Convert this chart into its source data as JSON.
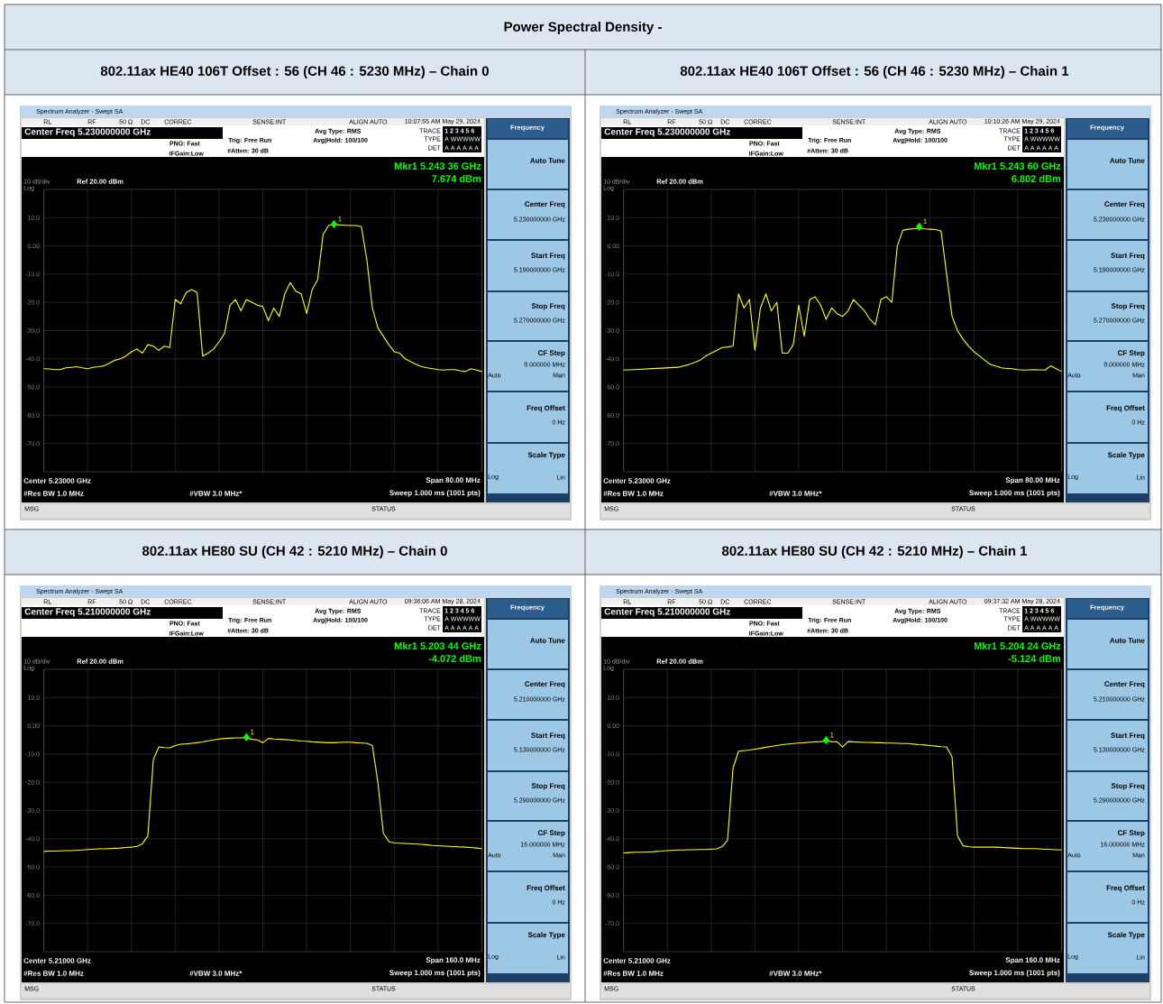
{
  "chart_data": [
    {
      "type": "other",
      "title": "Power Spectral Density -"
    },
    {
      "type": "line",
      "title": "802.11ax HE40 106T Offset : 56 (CH 46 : 5230 MHz) – Chain 0",
      "categories": [
        null,
        null,
        null,
        null,
        null,
        null,
        null,
        null,
        null,
        null,
        null,
        null,
        null,
        null,
        null,
        null,
        null,
        null,
        null,
        null,
        null,
        null,
        null,
        null,
        null,
        null,
        null,
        null,
        null,
        null,
        null,
        null,
        null,
        null,
        null,
        null,
        null,
        null,
        null,
        null,
        null,
        null,
        null,
        null,
        null,
        null,
        null,
        null,
        null,
        null,
        null,
        null,
        null,
        null,
        null,
        null,
        null,
        null,
        null,
        null,
        null,
        null,
        null,
        null,
        null,
        null,
        null,
        null,
        null,
        null,
        null,
        null,
        null,
        null,
        null,
        null,
        null,
        null,
        null,
        null,
        null
      ],
      "ylim": [
        -80,
        20
      ],
      "yticks": [
        {
          "value": -70,
          "label": "-70.0"
        },
        {
          "value": -60,
          "label": "-60.0"
        },
        {
          "value": -50,
          "label": "-50.0"
        },
        {
          "value": -40,
          "label": "-40.0"
        },
        {
          "value": -30,
          "label": "-30.0"
        },
        {
          "value": -20,
          "label": "-20.0"
        },
        {
          "value": -10,
          "label": "-10.0"
        },
        {
          "value": 0,
          "label": "0.00"
        },
        {
          "value": 10,
          "label": "10.0"
        }
      ],
      "tick_labels": "y",
      "grid": true,
      "series": [
        {
          "color": "#ffff00",
          "values": [
            -43.5,
            -43.6,
            -43.8,
            -43.8,
            -43.2,
            -43,
            -42.8,
            -43.2,
            -43.5,
            -43,
            -42.8,
            -42.5,
            -41.5,
            -40.5,
            -40,
            -39,
            -37.5,
            -36.5,
            -38,
            -35,
            -35.5,
            -37,
            -35.5,
            -36,
            -19,
            -20.5,
            -16.5,
            -15.5,
            -16.5,
            -39,
            -38,
            -36.5,
            -34,
            -31,
            -21,
            -19,
            -23,
            -19,
            -20,
            -21,
            -21.5,
            -26.5,
            -22,
            -25,
            -17,
            -13,
            -16,
            -17,
            -24,
            -15.5,
            -12,
            4,
            7.2,
            7.6,
            7.4,
            7.3,
            7.2,
            7.2,
            6.8,
            -5,
            -22,
            -29,
            -32,
            -35,
            -37.5,
            -38,
            -40,
            -41,
            -42,
            -42.8,
            -43.2,
            -43.5,
            -43.8,
            -44,
            -43.8,
            -43.8,
            -44.2,
            -44.5,
            -43.5,
            -44,
            -44.5
          ]
        },
        {
          "type": "scatter",
          "marker": "diamond",
          "color": "#00ff00",
          "values": [
            null,
            null,
            null,
            null,
            null,
            null,
            null,
            null,
            null,
            null,
            null,
            null,
            null,
            null,
            null,
            null,
            null,
            null,
            null,
            null,
            null,
            null,
            null,
            null,
            null,
            null,
            null,
            null,
            null,
            null,
            null,
            null,
            null,
            null,
            null,
            null,
            null,
            null,
            null,
            null,
            null,
            null,
            null,
            null,
            null,
            null,
            null,
            null,
            null,
            null,
            null,
            null,
            null,
            7.674,
            null,
            null,
            null,
            null,
            null,
            null,
            null,
            null,
            null,
            null,
            null,
            null,
            null,
            null,
            null,
            null,
            null,
            null,
            null,
            null,
            null,
            null,
            null,
            null,
            null,
            null,
            null
          ]
        }
      ],
      "annotations": [
        "Spectrum Analyzer - Swept SA",
        "RL",
        "RF",
        "50 Ω",
        "DC",
        "CORREC",
        "SENSE:INT",
        "ALIGN AUTO",
        "10:07:55 AM May 29, 2024",
        "Center Freq 5.230000000 GHz",
        "PNO: Fast",
        "IFGain:Low",
        "Trig: Free Run",
        "#Atten: 30 dB",
        "Avg Type: RMS",
        "Avg|Hold: 100/100",
        "TRACE",
        "1 2 3 4 5 6",
        "TYPE",
        "A WWWWW",
        "DET",
        "A A A A A A",
        "Mkr1 5.243 36 GHz",
        "7.674 dBm",
        "10 dB/div",
        "Ref 20.00 dBm",
        "Log",
        "Center 5.23000 GHz",
        "#Res BW 1.0 MHz",
        "#VBW 3.0 MHz*",
        "Span 80.00 MHz",
        "Sweep  1.000 ms (1001 pts)",
        "MSG",
        "STATUS",
        "Frequency",
        "Auto Tune",
        "Center Freq",
        "5.230000000 GHz",
        "Start Freq",
        "5.190000000 GHz",
        "Stop Freq",
        "5.270000000 GHz",
        "CF Step",
        "8.000000 MHz",
        "Auto",
        "Man",
        "Freq Offset",
        "0 Hz",
        "Scale Type",
        "Log",
        "Lin",
        {
          "text": "1",
          "y": 7.674
        }
      ]
    },
    {
      "type": "line",
      "title": "802.11ax HE40 106T Offset : 56 (CH 46 : 5230 MHz) – Chain 1",
      "categories": [
        null,
        null,
        null,
        null,
        null,
        null,
        null,
        null,
        null,
        null,
        null,
        null,
        null,
        null,
        null,
        null,
        null,
        null,
        null,
        null,
        null,
        null,
        null,
        null,
        null,
        null,
        null,
        null,
        null,
        null,
        null,
        null,
        null,
        null,
        null,
        null,
        null,
        null,
        null,
        null,
        null,
        null,
        null,
        null,
        null,
        null,
        null,
        null,
        null,
        null,
        null,
        null,
        null,
        null,
        null,
        null,
        null,
        null,
        null,
        null,
        null,
        null,
        null,
        null,
        null,
        null,
        null,
        null,
        null,
        null,
        null,
        null,
        null,
        null,
        null,
        null,
        null,
        null,
        null,
        null,
        null
      ],
      "ylim": [
        -80,
        20
      ],
      "yticks": [
        {
          "value": -70,
          "label": "-70.0"
        },
        {
          "value": -60,
          "label": "-60.0"
        },
        {
          "value": -50,
          "label": "-50.0"
        },
        {
          "value": -40,
          "label": "-40.0"
        },
        {
          "value": -30,
          "label": "-30.0"
        },
        {
          "value": -20,
          "label": "-20.0"
        },
        {
          "value": -10,
          "label": "-10.0"
        },
        {
          "value": 0,
          "label": "0.00"
        },
        {
          "value": 10,
          "label": "10.0"
        }
      ],
      "tick_labels": "y",
      "grid": true,
      "series": [
        {
          "color": "#ffff00",
          "values": [
            -44,
            -43.9,
            -43.8,
            -43.7,
            -43.6,
            -43.5,
            -43.4,
            -43.3,
            -43.2,
            -43.1,
            -43,
            -42.5,
            -42,
            -41.3,
            -40.5,
            -39,
            -38,
            -37,
            -36,
            -35.8,
            -35.5,
            -17,
            -22,
            -19,
            -37,
            -22,
            -17,
            -23,
            -20,
            -38,
            -38,
            -35,
            -21,
            -32,
            -19,
            -18,
            -21,
            -26,
            -22,
            -24,
            -25,
            -23,
            -19,
            -21,
            -23,
            -26,
            -28,
            -19,
            -18,
            -20,
            0,
            5.5,
            5.9,
            6.1,
            6.2,
            6,
            5.9,
            5.8,
            5.2,
            -10,
            -25,
            -30,
            -33,
            -35.5,
            -37.5,
            -39,
            -40.5,
            -42,
            -42.6,
            -43.2,
            -43.4,
            -43.5,
            -43.8,
            -44,
            -43.9,
            -43.8,
            -43.9,
            -44,
            -42.5,
            -43.5,
            -44.5
          ]
        },
        {
          "type": "scatter",
          "marker": "diamond",
          "color": "#00ff00",
          "values": [
            null,
            null,
            null,
            null,
            null,
            null,
            null,
            null,
            null,
            null,
            null,
            null,
            null,
            null,
            null,
            null,
            null,
            null,
            null,
            null,
            null,
            null,
            null,
            null,
            null,
            null,
            null,
            null,
            null,
            null,
            null,
            null,
            null,
            null,
            null,
            null,
            null,
            null,
            null,
            null,
            null,
            null,
            null,
            null,
            null,
            null,
            null,
            null,
            null,
            null,
            null,
            null,
            null,
            null,
            6.802,
            null,
            null,
            null,
            null,
            null,
            null,
            null,
            null,
            null,
            null,
            null,
            null,
            null,
            null,
            null,
            null,
            null,
            null,
            null,
            null,
            null,
            null,
            null,
            null,
            null,
            null
          ]
        }
      ],
      "annotations": [
        "Spectrum Analyzer - Swept SA",
        "RL",
        "RF",
        "50 Ω",
        "DC",
        "CORREC",
        "SENSE:INT",
        "ALIGN AUTO",
        "10:10:26 AM May 29, 2024",
        "Center Freq 5.230000000 GHz",
        "PNO: Fast",
        "IFGain:Low",
        "Trig: Free Run",
        "#Atten: 30 dB",
        "Avg Type: RMS",
        "Avg|Hold: 100/100",
        "TRACE",
        "1 2 3 4 5 6",
        "TYPE",
        "A WWWWW",
        "DET",
        "A A A A A A",
        "Mkr1 5.243 60 GHz",
        "6.802 dBm",
        "10 dB/div",
        "Ref 20.00 dBm",
        "Log",
        "Center 5.23000 GHz",
        "#Res BW 1.0 MHz",
        "#VBW 3.0 MHz*",
        "Span 80.00 MHz",
        "Sweep  1.000 ms (1001 pts)",
        "MSG",
        "STATUS",
        "Frequency",
        "Auto Tune",
        "Center Freq",
        "5.230000000 GHz",
        "Start Freq",
        "5.190000000 GHz",
        "Stop Freq",
        "5.270000000 GHz",
        "CF Step",
        "8.000000 MHz",
        "Auto",
        "Man",
        "Freq Offset",
        "0 Hz",
        "Scale Type",
        "Log",
        "Lin",
        {
          "text": "1",
          "y": 6.802
        }
      ]
    },
    {
      "type": "line",
      "title": "802.11ax HE80 SU (CH 42 : 5210 MHz) – Chain 0",
      "categories": [
        null,
        null,
        null,
        null,
        null,
        null,
        null,
        null,
        null,
        null,
        null,
        null,
        null,
        null,
        null,
        null,
        null,
        null,
        null,
        null,
        null,
        null,
        null,
        null,
        null,
        null,
        null,
        null,
        null,
        null,
        null,
        null,
        null,
        null,
        null,
        null,
        null,
        null,
        null,
        null,
        null,
        null,
        null,
        null,
        null,
        null,
        null,
        null,
        null,
        null,
        null,
        null,
        null,
        null,
        null,
        null,
        null,
        null,
        null,
        null,
        null,
        null,
        null,
        null,
        null,
        null,
        null,
        null,
        null,
        null,
        null,
        null,
        null,
        null,
        null,
        null,
        null,
        null,
        null,
        null,
        null
      ],
      "ylim": [
        -80,
        20
      ],
      "yticks": [
        {
          "value": -70,
          "label": "-70.0"
        },
        {
          "value": -60,
          "label": "-60.0"
        },
        {
          "value": -50,
          "label": "-50.0"
        },
        {
          "value": -40,
          "label": "-40.0"
        },
        {
          "value": -30,
          "label": "-30.0"
        },
        {
          "value": -20,
          "label": "-20.0"
        },
        {
          "value": -10,
          "label": "-10.0"
        },
        {
          "value": 0,
          "label": "0.00"
        },
        {
          "value": 10,
          "label": "10.0"
        }
      ],
      "tick_labels": "y",
      "grid": true,
      "series": [
        {
          "color": "#ffff00",
          "values": [
            -44.5,
            -44.4,
            -44.4,
            -44.3,
            -44.2,
            -44.2,
            -44.1,
            -44,
            -43.8,
            -43.7,
            -43.6,
            -43.6,
            -43.5,
            -43.4,
            -43.3,
            -43.1,
            -43,
            -42.7,
            -41.8,
            -39,
            -12,
            -7.5,
            -7.7,
            -7.8,
            -7,
            -6.5,
            -6.4,
            -6.2,
            -6,
            -5.7,
            -5.3,
            -5,
            -4.7,
            -4.5,
            -4.4,
            -4.3,
            -4.3,
            -4.2,
            -4.8,
            -5,
            -6,
            -4.5,
            -4.7,
            -4.8,
            -4.9,
            -5,
            -5.2,
            -5.4,
            -5.5,
            -5.7,
            -5.8,
            -5.9,
            -6,
            -6,
            -5.9,
            -5.8,
            -5.8,
            -6,
            -6.1,
            -6.2,
            -7,
            -20,
            -38,
            -41,
            -41.5,
            -41.6,
            -41.7,
            -41.8,
            -41.9,
            -42,
            -42.2,
            -42.4,
            -42.5,
            -42.6,
            -42.7,
            -42.8,
            -42.9,
            -43,
            -43.1,
            -43.3,
            -43.5
          ]
        },
        {
          "type": "scatter",
          "marker": "diamond",
          "color": "#00ff00",
          "values": [
            null,
            null,
            null,
            null,
            null,
            null,
            null,
            null,
            null,
            null,
            null,
            null,
            null,
            null,
            null,
            null,
            null,
            null,
            null,
            null,
            null,
            null,
            null,
            null,
            null,
            null,
            null,
            null,
            null,
            null,
            null,
            null,
            null,
            null,
            null,
            null,
            null,
            -4.072,
            null,
            null,
            null,
            null,
            null,
            null,
            null,
            null,
            null,
            null,
            null,
            null,
            null,
            null,
            null,
            null,
            null,
            null,
            null,
            null,
            null,
            null,
            null,
            null,
            null,
            null,
            null,
            null,
            null,
            null,
            null,
            null,
            null,
            null,
            null,
            null,
            null,
            null,
            null,
            null,
            null,
            null,
            null
          ]
        }
      ],
      "annotations": [
        "Spectrum Analyzer - Swept SA",
        "RL",
        "RF",
        "50 Ω",
        "DC",
        "CORREC",
        "SENSE:INT",
        "ALIGN AUTO",
        "09:36:06 AM May 28, 2024",
        "Center Freq 5.210000000 GHz",
        "PNO: Fast",
        "IFGain:Low",
        "Trig: Free Run",
        "#Atten: 30 dB",
        "Avg Type: RMS",
        "Avg|Hold: 100/100",
        "TRACE",
        "1 2 3 4 5 6",
        "TYPE",
        "A WWWWW",
        "DET",
        "A A A A A A",
        "Mkr1 5.203 44 GHz",
        "-4.072 dBm",
        "10 dB/div",
        "Ref 20.00 dBm",
        "Log",
        "Center 5.21000 GHz",
        "#Res BW 1.0 MHz",
        "#VBW 3.0 MHz*",
        "Span 160.0 MHz",
        "Sweep  1.000 ms (1001 pts)",
        "MSG",
        "STATUS",
        "Frequency",
        "Auto Tune",
        "Center Freq",
        "5.210000000 GHz",
        "Start Freq",
        "5.130000000 GHz",
        "Stop Freq",
        "5.290000000 GHz",
        "CF Step",
        "16.000000 MHz",
        "Auto",
        "Man",
        "Freq Offset",
        "0 Hz",
        "Scale Type",
        "Log",
        "Lin",
        {
          "text": "1",
          "y": -4.072
        }
      ]
    },
    {
      "type": "line",
      "title": "802.11ax HE80 SU (CH 42 : 5210 MHz) – Chain 1",
      "categories": [
        null,
        null,
        null,
        null,
        null,
        null,
        null,
        null,
        null,
        null,
        null,
        null,
        null,
        null,
        null,
        null,
        null,
        null,
        null,
        null,
        null,
        null,
        null,
        null,
        null,
        null,
        null,
        null,
        null,
        null,
        null,
        null,
        null,
        null,
        null,
        null,
        null,
        null,
        null,
        null,
        null,
        null,
        null,
        null,
        null,
        null,
        null,
        null,
        null,
        null,
        null,
        null,
        null,
        null,
        null,
        null,
        null,
        null,
        null,
        null,
        null,
        null,
        null,
        null,
        null,
        null,
        null,
        null,
        null,
        null,
        null,
        null,
        null,
        null,
        null,
        null,
        null,
        null,
        null,
        null,
        null
      ],
      "ylim": [
        -80,
        20
      ],
      "yticks": [
        {
          "value": -70,
          "label": "-70.0"
        },
        {
          "value": -60,
          "label": "-60.0"
        },
        {
          "value": -50,
          "label": "-50.0"
        },
        {
          "value": -40,
          "label": "-40.0"
        },
        {
          "value": -30,
          "label": "-30.0"
        },
        {
          "value": -20,
          "label": "-20.0"
        },
        {
          "value": -10,
          "label": "-10.0"
        },
        {
          "value": 0,
          "label": "0.00"
        },
        {
          "value": 10,
          "label": "10.0"
        }
      ],
      "tick_labels": "y",
      "grid": true,
      "series": [
        {
          "color": "#ffff00",
          "values": [
            -45,
            -44.9,
            -44.8,
            -44.8,
            -44.7,
            -44.7,
            -44.5,
            -44.4,
            -44.2,
            -44.1,
            -44,
            -44,
            -43.9,
            -43.9,
            -43.8,
            -43.8,
            -43.7,
            -43.6,
            -42.8,
            -40.5,
            -15,
            -9,
            -8.8,
            -8.6,
            -8.3,
            -8,
            -7.6,
            -7.3,
            -7,
            -6.7,
            -6.5,
            -6.3,
            -6.1,
            -6,
            -5.8,
            -5.7,
            -5.6,
            -5.4,
            -5.6,
            -5.7,
            -7.5,
            -5.6,
            -5.7,
            -5.8,
            -5.9,
            -5.9,
            -6,
            -6,
            -6.1,
            -6.1,
            -6.2,
            -6.3,
            -6.3,
            -6.5,
            -6.7,
            -6.8,
            -7,
            -7.2,
            -7.4,
            -7.5,
            -11,
            -39,
            -42.5,
            -42.8,
            -43,
            -43,
            -43,
            -43,
            -43,
            -43.1,
            -43.2,
            -43.3,
            -43.4,
            -43.5,
            -43.5,
            -43.5,
            -43.6,
            -43.7,
            -43.8,
            -43.9,
            -44
          ]
        },
        {
          "type": "scatter",
          "marker": "diamond",
          "color": "#00ff00",
          "values": [
            null,
            null,
            null,
            null,
            null,
            null,
            null,
            null,
            null,
            null,
            null,
            null,
            null,
            null,
            null,
            null,
            null,
            null,
            null,
            null,
            null,
            null,
            null,
            null,
            null,
            null,
            null,
            null,
            null,
            null,
            null,
            null,
            null,
            null,
            null,
            null,
            null,
            -5.124,
            null,
            null,
            null,
            null,
            null,
            null,
            null,
            null,
            null,
            null,
            null,
            null,
            null,
            null,
            null,
            null,
            null,
            null,
            null,
            null,
            null,
            null,
            null,
            null,
            null,
            null,
            null,
            null,
            null,
            null,
            null,
            null,
            null,
            null,
            null,
            null,
            null,
            null,
            null,
            null,
            null,
            null,
            null
          ]
        }
      ],
      "annotations": [
        "Spectrum Analyzer - Swept SA",
        "RL",
        "RF",
        "50 Ω",
        "DC",
        "CORREC",
        "SENSE:INT",
        "ALIGN AUTO",
        "09:37:32 AM May 28, 2024",
        "Center Freq 5.210000000 GHz",
        "PNO: Fast",
        "IFGain:Low",
        "Trig: Free Run",
        "#Atten: 30 dB",
        "Avg Type: RMS",
        "Avg|Hold: 100/100",
        "TRACE",
        "1 2 3 4 5 6",
        "TYPE",
        "A WWWWW",
        "DET",
        "A A A A A A",
        "Mkr1 5.204 24 GHz",
        "-5.124 dBm",
        "10 dB/div",
        "Ref 20.00 dBm",
        "Log",
        "Center 5.21000 GHz",
        "#Res BW 1.0 MHz",
        "#VBW 3.0 MHz*",
        "Span 160.0 MHz",
        "Sweep  1.000 ms (1001 pts)",
        "MSG",
        "STATUS",
        "Frequency",
        "Auto Tune",
        "Center Freq",
        "5.210000000 GHz",
        "Start Freq",
        "5.130000000 GHz",
        "Stop Freq",
        "5.290000000 GHz",
        "CF Step",
        "16.000000 MHz",
        "Auto",
        "Man",
        "Freq Offset",
        "0 Hz",
        "Scale Type",
        "Log",
        "Lin",
        {
          "text": "1",
          "y": -5.124
        }
      ]
    }
  ]
}
